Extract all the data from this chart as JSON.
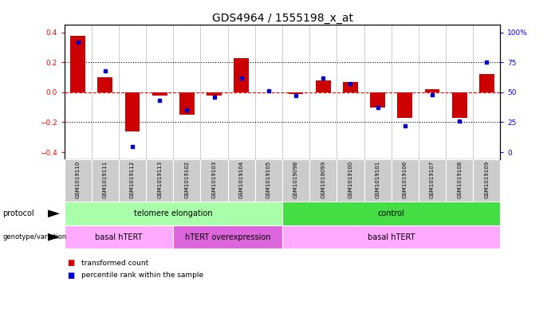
{
  "title": "GDS4964 / 1555198_x_at",
  "samples": [
    "GSM1019110",
    "GSM1019111",
    "GSM1019112",
    "GSM1019113",
    "GSM1019102",
    "GSM1019103",
    "GSM1019104",
    "GSM1019105",
    "GSM1019098",
    "GSM1019099",
    "GSM1019100",
    "GSM1019101",
    "GSM1019106",
    "GSM1019107",
    "GSM1019108",
    "GSM1019109"
  ],
  "red_values": [
    0.38,
    0.1,
    -0.26,
    -0.02,
    -0.15,
    -0.02,
    0.23,
    0.0,
    -0.01,
    0.08,
    0.07,
    -0.1,
    -0.17,
    0.02,
    -0.17,
    0.12
  ],
  "blue_values_pct": [
    92,
    68,
    5,
    43,
    35,
    46,
    62,
    51,
    47,
    62,
    57,
    37,
    22,
    48,
    26,
    75
  ],
  "ylim": [
    -0.45,
    0.45
  ],
  "yticks": [
    -0.4,
    -0.2,
    0.0,
    0.2,
    0.4
  ],
  "right_yticks": [
    0,
    25,
    50,
    75,
    100
  ],
  "hlines_dotted": [
    -0.2,
    0.2
  ],
  "hline_red": 0.0,
  "protocol_groups": [
    {
      "label": "telomere elongation",
      "start": 0,
      "end": 8,
      "color": "#aaffaa"
    },
    {
      "label": "control",
      "start": 8,
      "end": 16,
      "color": "#44dd44"
    }
  ],
  "genotype_groups": [
    {
      "label": "basal hTERT",
      "start": 0,
      "end": 4,
      "color": "#ffaaff"
    },
    {
      "label": "hTERT overexpression",
      "start": 4,
      "end": 8,
      "color": "#dd66dd"
    },
    {
      "label": "basal hTERT",
      "start": 8,
      "end": 16,
      "color": "#ffaaff"
    }
  ],
  "legend_items": [
    {
      "label": "transformed count",
      "color": "#cc0000"
    },
    {
      "label": "percentile rank within the sample",
      "color": "#0000cc"
    }
  ],
  "bar_color": "#cc0000",
  "dot_color": "#0000cc",
  "title_fontsize": 10,
  "tick_fontsize": 6.5,
  "label_fontsize": 7
}
